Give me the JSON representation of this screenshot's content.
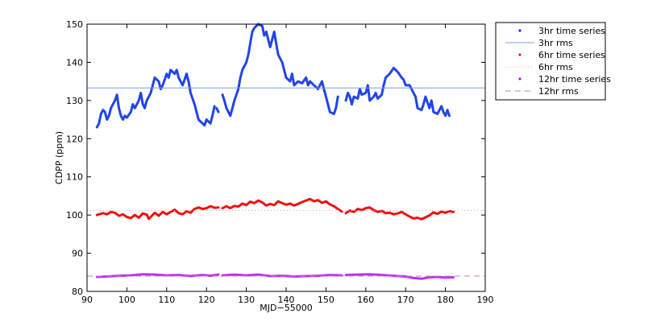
{
  "chart_data": {
    "type": "line",
    "title": "",
    "xlabel": "MJD−55000",
    "ylabel": "CDPP (ppm)",
    "xlim": [
      90,
      190
    ],
    "ylim": [
      80,
      150
    ],
    "xticks": [
      "90",
      "100",
      "110",
      "120",
      "130",
      "140",
      "150",
      "160",
      "170",
      "180",
      "190"
    ],
    "yticks": [
      "80",
      "90",
      "100",
      "110",
      "120",
      "130",
      "140",
      "150"
    ],
    "grid": false,
    "legend_position": "outside-top-right",
    "legend": [
      {
        "label": "3hr time series",
        "marker": "dot",
        "color": "#0000ff"
      },
      {
        "label": "3hr rms",
        "line": "solid",
        "color": "#7b9be8"
      },
      {
        "label": "6hr time series",
        "marker": "dot",
        "color": "#ff0000"
      },
      {
        "label": "6hr rms",
        "line": "dotted",
        "color": "#e8a0a0"
      },
      {
        "label": "12hr time series",
        "marker": "dot",
        "color": "#bf00bf"
      },
      {
        "label": "12hr rms",
        "line": "dashed",
        "color": "#d17ad1"
      }
    ],
    "series": [
      {
        "name": "3hr time series",
        "color": "#2244e8",
        "segments": [
          [
            [
              92.5,
              123
            ],
            [
              93,
              124
            ],
            [
              93.5,
              126.5
            ],
            [
              94,
              127.5
            ],
            [
              94.5,
              127
            ],
            [
              95,
              125
            ],
            [
              95.5,
              126
            ],
            [
              96,
              128
            ],
            [
              97,
              130
            ],
            [
              97.5,
              131.5
            ],
            [
              98,
              128
            ],
            [
              98.5,
              126
            ],
            [
              99,
              125
            ],
            [
              99.5,
              126
            ],
            [
              100,
              125.5
            ],
            [
              101,
              127
            ],
            [
              101.5,
              129
            ],
            [
              102,
              128
            ],
            [
              103,
              130
            ],
            [
              103.5,
              132
            ],
            [
              104,
              129
            ],
            [
              104.5,
              128
            ],
            [
              105,
              130
            ],
            [
              106,
              132
            ],
            [
              106.5,
              134
            ],
            [
              107,
              136
            ],
            [
              108,
              135
            ],
            [
              108.5,
              133
            ],
            [
              109,
              134
            ],
            [
              110,
              137
            ],
            [
              110.5,
              136
            ],
            [
              111,
              138
            ],
            [
              112,
              137
            ],
            [
              112.5,
              138
            ],
            [
              113,
              136
            ],
            [
              114,
              134
            ],
            [
              115,
              137
            ],
            [
              115.5,
              135
            ],
            [
              116,
              132
            ],
            [
              117,
              129
            ],
            [
              117.5,
              127
            ],
            [
              118,
              125
            ],
            [
              119,
              124
            ],
            [
              119.5,
              123.5
            ],
            [
              120,
              125
            ],
            [
              121,
              124
            ],
            [
              121.5,
              126
            ],
            [
              122,
              128.5
            ]
          ],
          [
            [
              122.5,
              128
            ],
            [
              123,
              127
            ]
          ],
          [
            [
              124,
              131.5
            ],
            [
              124.5,
              130
            ],
            [
              125,
              128
            ],
            [
              125.5,
              127
            ],
            [
              126,
              126
            ],
            [
              126.5,
              128
            ],
            [
              127,
              130
            ],
            [
              128,
              133
            ],
            [
              128.5,
              136
            ],
            [
              129,
              138
            ],
            [
              130,
              140
            ],
            [
              130.5,
              142
            ],
            [
              131,
              145
            ],
            [
              131.5,
              148
            ],
            [
              132,
              149
            ],
            [
              133,
              150
            ],
            [
              134,
              149.5
            ],
            [
              134.5,
              147
            ],
            [
              135,
              148
            ],
            [
              136,
              144
            ],
            [
              136.5,
              146
            ],
            [
              137,
              148
            ],
            [
              137.5,
              145
            ],
            [
              138,
              142
            ],
            [
              139,
              140
            ],
            [
              139.5,
              138
            ],
            [
              140,
              136
            ],
            [
              141,
              135
            ],
            [
              141.5,
              137
            ],
            [
              142,
              134
            ],
            [
              143,
              135
            ],
            [
              144,
              134.5
            ],
            [
              145,
              136
            ],
            [
              145.5,
              134
            ],
            [
              146,
              135
            ],
            [
              147,
              134
            ],
            [
              148,
              133
            ],
            [
              149,
              135
            ],
            [
              149.5,
              133
            ],
            [
              150,
              131
            ],
            [
              150.5,
              129
            ],
            [
              151,
              127
            ],
            [
              152,
              126.5
            ],
            [
              152.5,
              128
            ],
            [
              153,
              131
            ]
          ],
          [
            [
              155,
              130
            ],
            [
              155.5,
              132
            ],
            [
              156,
              131
            ],
            [
              156.5,
              129
            ],
            [
              157,
              131
            ],
            [
              158,
              130.5
            ],
            [
              158.5,
              133
            ],
            [
              159,
              131.5
            ],
            [
              160,
              132
            ],
            [
              160.5,
              134
            ],
            [
              161,
              130
            ],
            [
              162,
              131
            ],
            [
              162.5,
              132
            ],
            [
              163,
              130.5
            ],
            [
              164,
              131.5
            ],
            [
              164.5,
              134
            ],
            [
              165,
              136
            ],
            [
              166,
              137
            ],
            [
              167,
              138.5
            ],
            [
              168,
              137.5
            ],
            [
              169,
              136
            ],
            [
              169.5,
              135.5
            ],
            [
              170,
              134
            ],
            [
              171,
              134
            ],
            [
              172,
              132
            ],
            [
              172.5,
              131
            ],
            [
              173,
              128
            ],
            [
              174,
              127.5
            ],
            [
              174.5,
              129
            ],
            [
              175,
              131
            ],
            [
              176,
              128
            ],
            [
              176.5,
              130
            ],
            [
              177,
              127
            ],
            [
              178,
              126.5
            ],
            [
              179,
              128.5
            ],
            [
              179.5,
              127
            ],
            [
              180,
              126
            ],
            [
              180.5,
              127.5
            ],
            [
              181,
              126
            ]
          ]
        ]
      },
      {
        "name": "3hr rms",
        "color": "#7b9be8",
        "dash": "solid",
        "y": 133.3
      },
      {
        "name": "6hr time series",
        "color": "#ee1111",
        "segments": [
          [
            [
              92.5,
              100
            ],
            [
              94,
              100.5
            ],
            [
              95,
              100.2
            ],
            [
              96,
              100.8
            ],
            [
              97,
              100.6
            ],
            [
              98,
              99.8
            ],
            [
              99,
              100.2
            ],
            [
              100,
              99.5
            ],
            [
              101,
              99.2
            ],
            [
              102,
              100
            ],
            [
              103,
              99.3
            ],
            [
              104,
              100.4
            ],
            [
              105,
              100.1
            ],
            [
              105.5,
              99
            ],
            [
              106,
              99.5
            ],
            [
              107,
              100.6
            ],
            [
              108,
              99.8
            ],
            [
              109,
              100.8
            ],
            [
              110,
              100.2
            ],
            [
              111,
              100.8
            ],
            [
              112,
              101.4
            ],
            [
              113,
              100.5
            ],
            [
              114,
              100.2
            ],
            [
              115,
              101
            ],
            [
              116,
              100.6
            ],
            [
              117,
              101.6
            ],
            [
              118,
              102
            ],
            [
              119,
              101.6
            ],
            [
              120,
              101.8
            ],
            [
              121,
              102.3
            ],
            [
              122,
              101.9
            ],
            [
              123,
              102
            ]
          ],
          [
            [
              124,
              101.8
            ],
            [
              125,
              102.3
            ],
            [
              126,
              101.8
            ],
            [
              127,
              102.4
            ],
            [
              128,
              102.2
            ],
            [
              129,
              103
            ],
            [
              130,
              102.6
            ],
            [
              131,
              103.5
            ],
            [
              132,
              103.1
            ],
            [
              133,
              103.8
            ],
            [
              134,
              103.3
            ],
            [
              135,
              102.5
            ],
            [
              136,
              102.9
            ],
            [
              137,
              102.6
            ],
            [
              138,
              103.6
            ],
            [
              139,
              103.1
            ],
            [
              140,
              102.7
            ],
            [
              141,
              103
            ],
            [
              142,
              102.5
            ],
            [
              143,
              102.9
            ],
            [
              144,
              103.4
            ],
            [
              145,
              103.8
            ],
            [
              146,
              104.2
            ],
            [
              147,
              103.6
            ],
            [
              148,
              103.9
            ],
            [
              149,
              103.2
            ],
            [
              150,
              103.6
            ],
            [
              151,
              102.8
            ],
            [
              152,
              102.3
            ],
            [
              153,
              101.6
            ],
            [
              154,
              100.9
            ]
          ],
          [
            [
              155,
              100.5
            ],
            [
              156,
              101.2
            ],
            [
              157,
              100.8
            ],
            [
              158,
              101.6
            ],
            [
              159,
              101.3
            ],
            [
              160,
              101.8
            ],
            [
              161,
              102
            ],
            [
              162,
              101.3
            ],
            [
              163,
              100.8
            ],
            [
              164,
              101.1
            ],
            [
              165,
              100.5
            ],
            [
              166,
              100.6
            ],
            [
              167,
              100.2
            ],
            [
              168,
              100.4
            ],
            [
              169,
              100.8
            ],
            [
              170,
              100.2
            ],
            [
              171,
              99.6
            ],
            [
              172,
              99.1
            ],
            [
              173,
              99.3
            ],
            [
              174,
              98.9
            ],
            [
              175,
              99.4
            ],
            [
              176,
              99.9
            ],
            [
              177,
              100.7
            ],
            [
              178,
              100.3
            ],
            [
              179,
              100.9
            ],
            [
              180,
              100.6
            ],
            [
              181,
              101
            ],
            [
              182,
              100.8
            ]
          ]
        ]
      },
      {
        "name": "6hr rms",
        "color": "#e8a0a0",
        "dash": "dotted",
        "y": 101.2
      },
      {
        "name": "12hr time series",
        "color": "#bb33ee",
        "segments": [
          [
            [
              92.5,
              83.8
            ],
            [
              95,
              83.9
            ],
            [
              98,
              84.1
            ],
            [
              101,
              84.2
            ],
            [
              104,
              84.5
            ],
            [
              107,
              84.4
            ],
            [
              110,
              84.2
            ],
            [
              113,
              84.3
            ],
            [
              116,
              84
            ],
            [
              119,
              84.3
            ],
            [
              121,
              84.1
            ],
            [
              123,
              84.4
            ]
          ],
          [
            [
              124,
              84.2
            ],
            [
              127,
              84.4
            ],
            [
              130,
              84.2
            ],
            [
              133,
              84.4
            ],
            [
              136,
              84
            ],
            [
              139,
              84.1
            ],
            [
              142,
              83.9
            ],
            [
              145,
              84
            ],
            [
              148,
              84.1
            ],
            [
              151,
              84.3
            ],
            [
              154,
              84.2
            ]
          ],
          [
            [
              155,
              84.3
            ],
            [
              158,
              84.4
            ],
            [
              161,
              84.5
            ],
            [
              164,
              84.3
            ],
            [
              167,
              84.1
            ],
            [
              170,
              83.9
            ],
            [
              172,
              83.5
            ],
            [
              174,
              83.3
            ],
            [
              176,
              83.7
            ],
            [
              178,
              83.8
            ],
            [
              180,
              83.6
            ],
            [
              182,
              83.7
            ]
          ]
        ]
      },
      {
        "name": "12hr rms",
        "color": "#d17ad1",
        "dash": "dashed",
        "y": 84
      }
    ]
  }
}
